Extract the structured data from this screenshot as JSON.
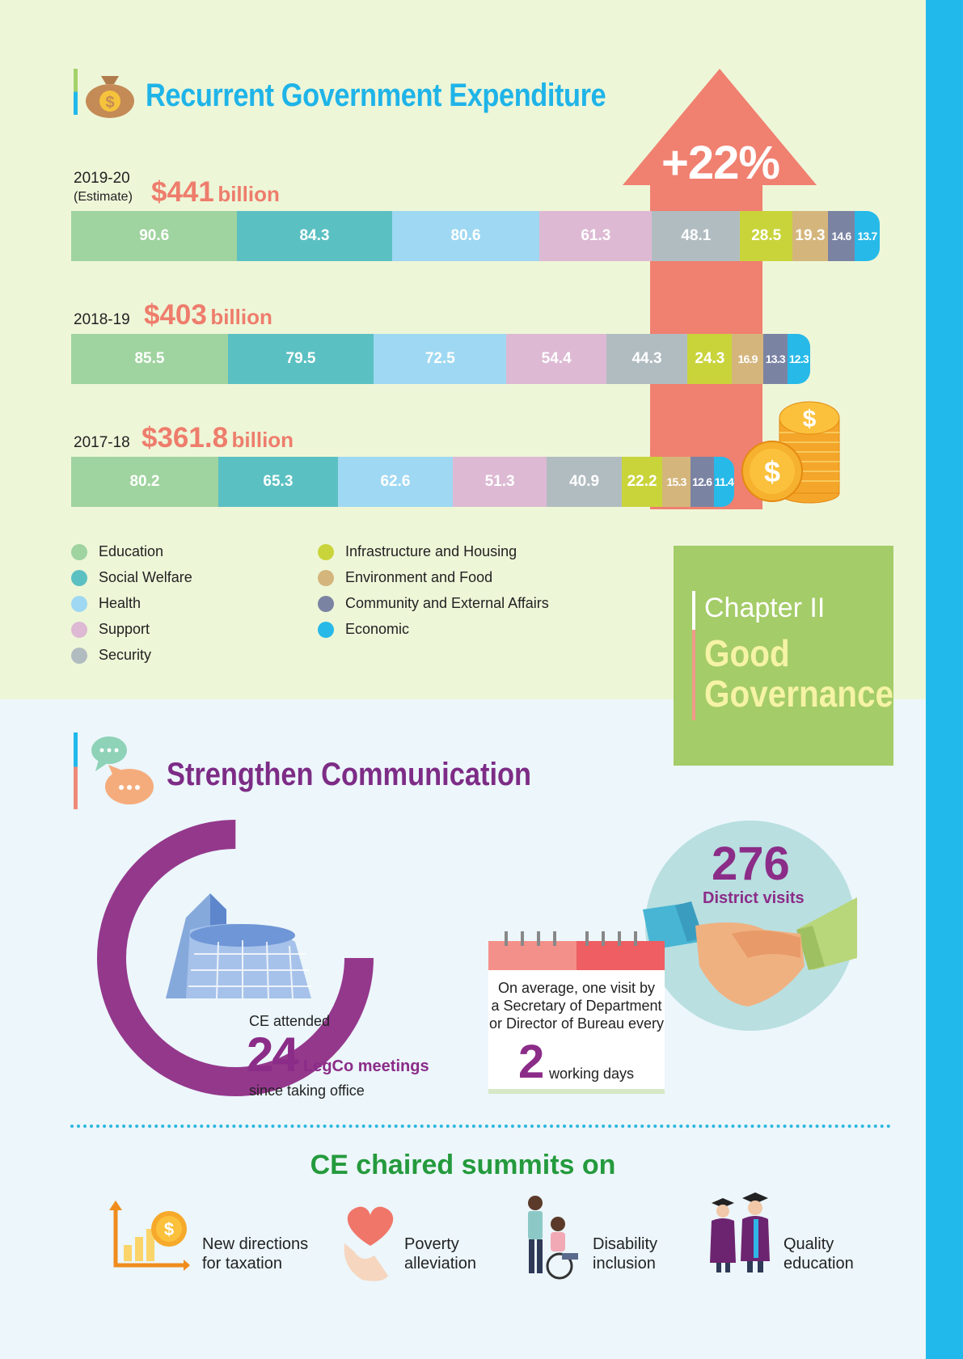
{
  "expenditure": {
    "title": "Recurrent Government Expenditure",
    "increase": "+22%",
    "rows": [
      {
        "year": "2019-20",
        "note": "(Estimate)",
        "total_value": "$441",
        "total_unit": "billion"
      },
      {
        "year": "2018-19",
        "note": "",
        "total_value": "$403",
        "total_unit": "billion"
      },
      {
        "year": "2017-18",
        "note": "",
        "total_value": "$361.8",
        "total_unit": "billion"
      }
    ]
  },
  "chart_data": {
    "type": "bar",
    "orientation": "horizontal",
    "stacked": true,
    "categories": [
      "2019-20 (Estimate)",
      "2018-19",
      "2017-18"
    ],
    "totals": [
      441,
      403,
      361.8
    ],
    "series": [
      {
        "name": "Education",
        "color": "#9fd39f",
        "values": [
          90.6,
          85.5,
          80.2
        ]
      },
      {
        "name": "Social Welfare",
        "color": "#5bc0c2",
        "values": [
          84.3,
          79.5,
          65.3
        ]
      },
      {
        "name": "Health",
        "color": "#9fd8f2",
        "values": [
          80.6,
          72.5,
          62.6
        ]
      },
      {
        "name": "Support",
        "color": "#ddb9d3",
        "values": [
          61.3,
          54.4,
          51.3
        ]
      },
      {
        "name": "Security",
        "color": "#b1bcc1",
        "values": [
          48.1,
          44.3,
          40.9
        ]
      },
      {
        "name": "Infrastructure and Housing",
        "color": "#c9d43b",
        "values": [
          28.5,
          24.3,
          22.2
        ]
      },
      {
        "name": "Environment and Food",
        "color": "#d4b57c",
        "values": [
          19.3,
          16.9,
          15.3
        ]
      },
      {
        "name": "Community and External Affairs",
        "color": "#7b83a3",
        "values": [
          14.6,
          13.3,
          12.6
        ]
      },
      {
        "name": "Economic",
        "color": "#27b9e8",
        "values": [
          13.7,
          12.3,
          11.4
        ]
      }
    ],
    "legend_position": "bottom-left"
  },
  "legend": [
    {
      "label": "Education",
      "color": "#9fd39f"
    },
    {
      "label": "Social Welfare",
      "color": "#5bc0c2"
    },
    {
      "label": "Health",
      "color": "#9fd8f2"
    },
    {
      "label": "Support",
      "color": "#ddb9d3"
    },
    {
      "label": "Security",
      "color": "#b1bcc1"
    },
    {
      "label": "Infrastructure and Housing",
      "color": "#c9d43b"
    },
    {
      "label": "Environment and Food",
      "color": "#d4b57c"
    },
    {
      "label": "Community and External Affairs",
      "color": "#7b83a3"
    },
    {
      "label": "Economic",
      "color": "#27b9e8"
    }
  ],
  "chapter": {
    "small": "Chapter II",
    "line1": "Good",
    "line2": "Governance"
  },
  "communication": {
    "title": "Strengthen Communication",
    "legco": {
      "pre": "CE attended",
      "number": "24",
      "label": "LegCo meetings",
      "post": "since taking office",
      "ring_fraction": 0.75
    },
    "district": {
      "number": "276",
      "label": "District visits"
    },
    "visit": {
      "line1": "On average, one visit by",
      "line2": "a Secretary of Department",
      "line3": "or Director of Bureau every",
      "number": "2",
      "unit": "working days"
    }
  },
  "summits": {
    "title": "CE chaired summits on",
    "items": [
      {
        "line1": "New directions",
        "line2": "for taxation"
      },
      {
        "line1": "Poverty",
        "line2": "alleviation"
      },
      {
        "line1": "Disability",
        "line2": "inclusion"
      },
      {
        "line1": "Quality",
        "line2": "education"
      }
    ]
  },
  "colors": {
    "accent_orange": "#ee7d6c",
    "purple": "#8b2c88",
    "green": "#a4cc68",
    "blue": "#21b9eb"
  }
}
